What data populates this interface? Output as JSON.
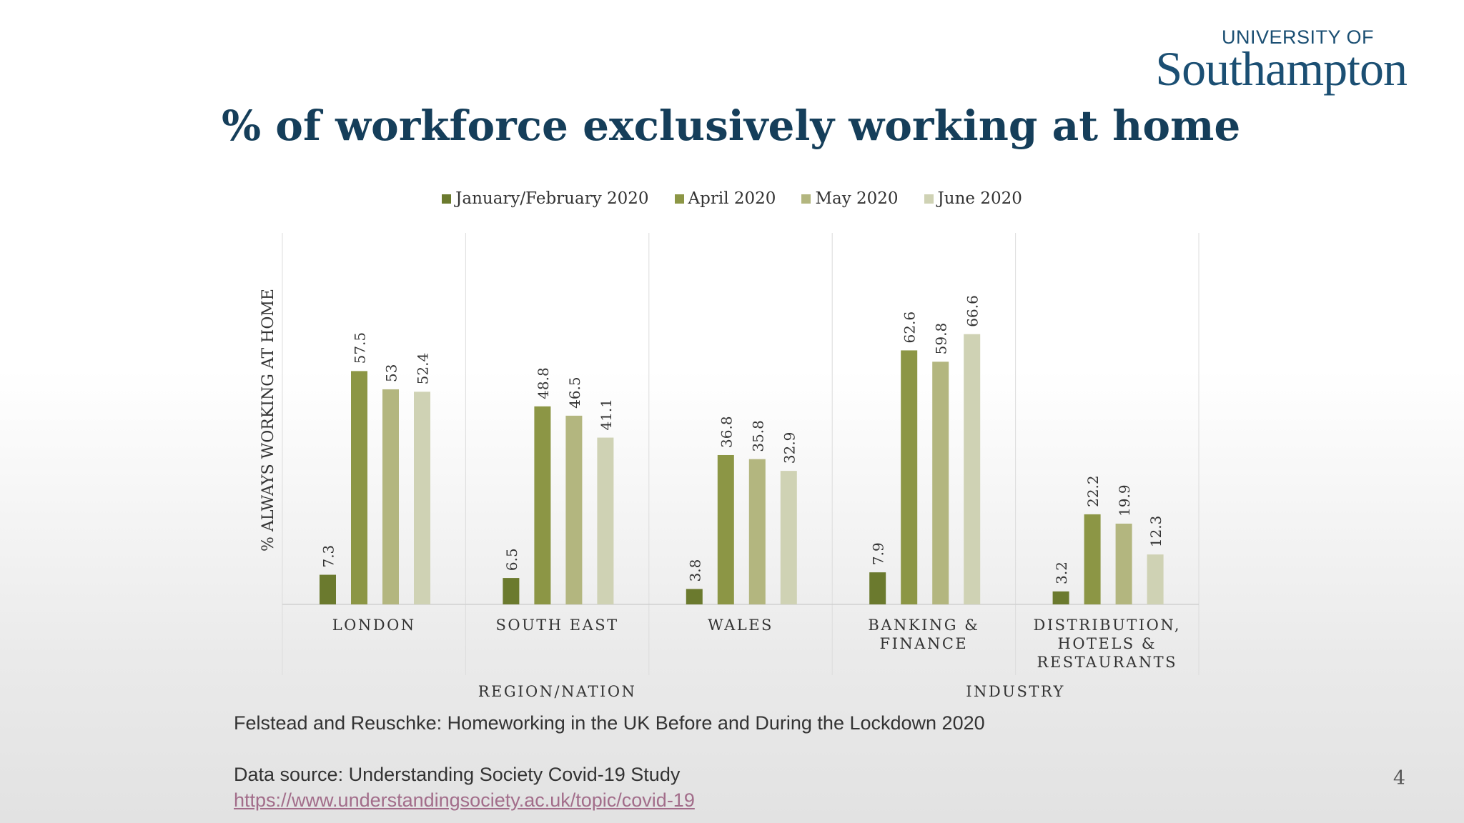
{
  "logo": {
    "top": "UNIVERSITY OF",
    "main": "Southampton"
  },
  "slide": {
    "title": "% of workforce exclusively working at home",
    "citation": "Felstead and Reuschke: Homeworking in the UK Before and During the Lockdown 2020",
    "data_source": "Data source: Understanding Society Covid-19 Study",
    "link": "https://www.understandingsociety.ac.uk/topic/covid-19",
    "page_number": "4"
  },
  "colors": {
    "title": "#153e5a",
    "series": [
      "#6b7a2e",
      "#8c9645",
      "#b3b67f",
      "#cfd2b4"
    ]
  },
  "chart_data": {
    "type": "bar",
    "title": "% of workforce exclusively working at home",
    "ylabel": "% ALWAYS WORKING AT HOME",
    "ylim": [
      0,
      70
    ],
    "grid": false,
    "legend_position": "top",
    "categories": [
      [
        "LONDON"
      ],
      [
        "SOUTH EAST"
      ],
      [
        "WALES"
      ],
      [
        "BANKING &",
        "FINANCE"
      ],
      [
        "DISTRIBUTION,",
        "HOTELS &",
        "RESTAURANTS"
      ]
    ],
    "groups": [
      {
        "label": "REGION/NATION",
        "span": 3
      },
      {
        "label": "INDUSTRY",
        "span": 2
      }
    ],
    "series": [
      {
        "name": "January/February 2020",
        "values": [
          7.3,
          6.5,
          3.8,
          7.9,
          3.2
        ]
      },
      {
        "name": "April 2020",
        "values": [
          57.5,
          48.8,
          36.8,
          62.6,
          22.2
        ]
      },
      {
        "name": "May 2020",
        "values": [
          53,
          46.5,
          35.8,
          59.8,
          19.9
        ]
      },
      {
        "name": "June 2020",
        "values": [
          52.4,
          41.1,
          32.9,
          66.6,
          12.3
        ]
      }
    ]
  }
}
